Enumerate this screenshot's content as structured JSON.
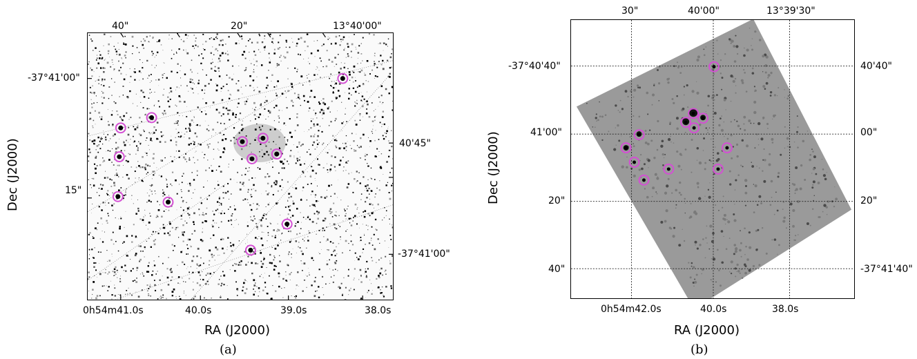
{
  "panels": [
    {
      "id": "a",
      "caption": "(a)",
      "xlabel": "RA (J2000)",
      "ylabel": "Dec (J2000)",
      "bottom_ticks": [
        "0h54m41.0s",
        "40.0s",
        "39.0s",
        "38.0s"
      ],
      "top_ticks": [
        "40\"",
        "20\"",
        "13°40'00\""
      ],
      "left_ticks": [
        "-37°41'00\"",
        "15\""
      ],
      "right_ticks": [
        "40'45\"",
        "-37°41'00\""
      ]
    },
    {
      "id": "b",
      "caption": "(b)",
      "xlabel": "RA (J2000)",
      "ylabel": "Dec (J2000)",
      "bottom_ticks": [
        "0h54m42.0s",
        "40.0s",
        "38.0s"
      ],
      "top_ticks": [
        "30\"",
        "40'00\"",
        "13°39'30\""
      ],
      "left_ticks": [
        "-37°40'40\"",
        "41'00\"",
        "20\"",
        "40\""
      ],
      "right_ticks": [
        "40'40\"",
        "00\"",
        "20\"",
        "-37°41'40\""
      ]
    }
  ],
  "colors": {
    "marker": "#d44fd4",
    "frame": "#000000",
    "grid": "#333333"
  }
}
